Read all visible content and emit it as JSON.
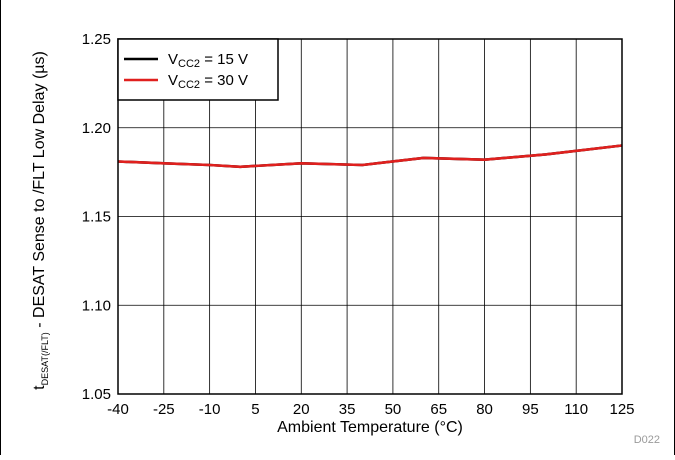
{
  "chart_data": {
    "type": "line",
    "xlabel": "Ambient Temperature (°C)",
    "ylabel_main": "t",
    "ylabel_sub": "DESAT(/FLT)",
    "ylabel_rest": " - DESAT Sense to /FLT Low Delay (µs)",
    "xlim": [
      -40,
      125
    ],
    "ylim": [
      1.05,
      1.25
    ],
    "x_ticks": [
      -40,
      -25,
      -10,
      5,
      20,
      35,
      50,
      65,
      80,
      95,
      110,
      125
    ],
    "y_ticks": [
      "1.05",
      "1.10",
      "1.15",
      "1.20",
      "1.25"
    ],
    "grid": true,
    "legend_position": "top-left",
    "series": [
      {
        "name_main": "V",
        "name_sub": "CC2",
        "name_rest": " = 15 V",
        "color": "#000000",
        "x": [
          -40,
          -25,
          -10,
          0,
          20,
          40,
          60,
          80,
          100,
          125
        ],
        "y": [
          1.181,
          1.18,
          1.179,
          1.178,
          1.18,
          1.179,
          1.183,
          1.182,
          1.185,
          1.19
        ]
      },
      {
        "name_main": "V",
        "name_sub": "CC2",
        "name_rest": " = 30 V",
        "color": "#e0201e",
        "x": [
          -40,
          -25,
          -10,
          0,
          20,
          40,
          60,
          80,
          100,
          125
        ],
        "y": [
          1.181,
          1.18,
          1.179,
          1.178,
          1.18,
          1.179,
          1.183,
          1.182,
          1.185,
          1.19
        ]
      }
    ],
    "figure_id": "D022"
  }
}
